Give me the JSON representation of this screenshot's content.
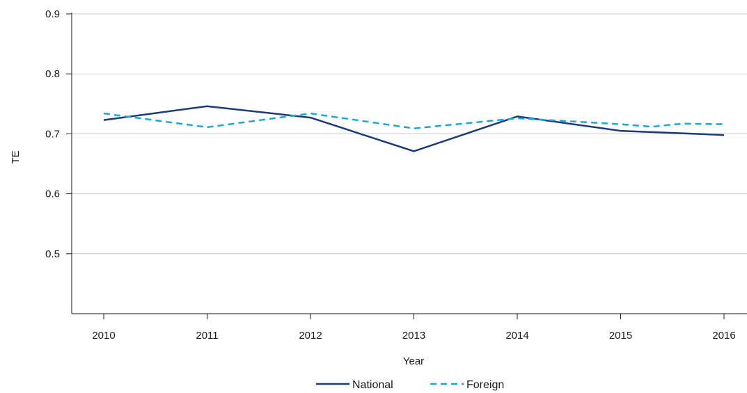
{
  "chart_data": {
    "type": "line",
    "title": "",
    "xlabel": "Year",
    "ylabel": "TE",
    "categories": [
      "2010",
      "2011",
      "2012",
      "2013",
      "2014",
      "2015",
      "2016"
    ],
    "ylim": [
      0.4,
      0.9
    ],
    "yticks": [
      "0.5",
      "0.6",
      "0.7",
      "0.8",
      "0.9"
    ],
    "grid": "horizontal",
    "legend_position": "bottom-center",
    "series": [
      {
        "name": "National",
        "color": "#1b3a78",
        "style": "solid",
        "x": [
          2010,
          2011,
          2012,
          2013,
          2014,
          2015,
          2016
        ],
        "values": [
          0.723,
          0.746,
          0.727,
          0.671,
          0.729,
          0.705,
          0.698
        ]
      },
      {
        "name": "Foreign",
        "color": "#1aa7d8",
        "style": "dashed",
        "x": [
          2010,
          2011,
          2012,
          2013,
          2014,
          2015,
          2015.3,
          2015.6,
          2016
        ],
        "values": [
          0.734,
          0.711,
          0.734,
          0.709,
          0.726,
          0.716,
          0.712,
          0.717,
          0.716
        ]
      }
    ]
  }
}
